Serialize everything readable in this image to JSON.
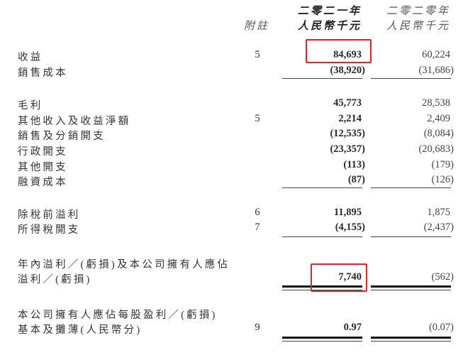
{
  "header": {
    "note_label": "附註",
    "col1_year": "二零二一年",
    "col1_unit": "人民幣千元",
    "col2_year": "二零二零年",
    "col2_unit": "人民幣千元"
  },
  "rows": [
    {
      "label": "收益",
      "note": "5",
      "v2021": "84,693",
      "v2020": "60,224"
    },
    {
      "label": "銷售成本",
      "note": "",
      "v2021": "(38,920)",
      "v2020": "(31,686)"
    },
    {
      "label": "毛利",
      "note": "",
      "v2021": "45,773",
      "v2020": "28,538"
    },
    {
      "label": "其他收入及收益淨額",
      "note": "5",
      "v2021": "2,214",
      "v2020": "2,409"
    },
    {
      "label": "銷售及分銷開支",
      "note": "",
      "v2021": "(12,535)",
      "v2020": "(8,084)"
    },
    {
      "label": "行政開支",
      "note": "",
      "v2021": "(23,357)",
      "v2020": "(20,683)"
    },
    {
      "label": "其他開支",
      "note": "",
      "v2021": "(113)",
      "v2020": "(179)"
    },
    {
      "label": "融資成本",
      "note": "",
      "v2021": "(87)",
      "v2020": "(126)"
    },
    {
      "label": "除稅前溢利",
      "note": "6",
      "v2021": "11,895",
      "v2020": "1,875"
    },
    {
      "label": "所得稅開支",
      "note": "7",
      "v2021": "(4,155)",
      "v2020": "(2,437)"
    },
    {
      "label": "年內溢利／(虧損)及本公司擁有人應佔",
      "note": "",
      "v2021": "",
      "v2020": ""
    },
    {
      "label": " 溢利／(虧損)",
      "note": "",
      "v2021": "7,740",
      "v2020": "(562)"
    },
    {
      "label": "本公司擁有人應佔每股盈利／(虧損)",
      "note": "",
      "v2021": "",
      "v2020": ""
    },
    {
      "label": "基本及攤薄(人民幣分)",
      "note": "9",
      "v2021": "0.97",
      "v2020": "(0.07)"
    }
  ],
  "highlight_color": "#e0262a"
}
